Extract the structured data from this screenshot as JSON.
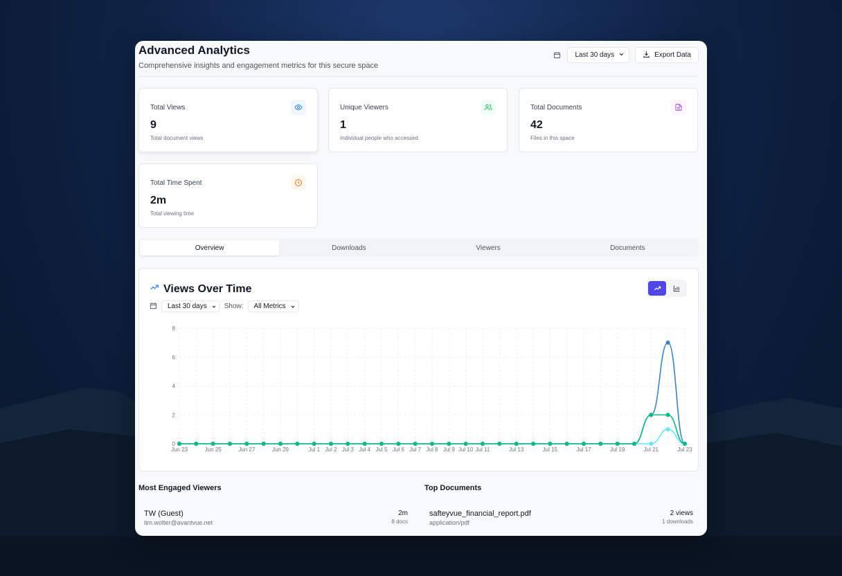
{
  "header": {
    "title": "Advanced Analytics",
    "subtitle": "Comprehensive insights and engagement metrics for this secure space",
    "date_range": "Last 30 days",
    "export_label": "Export Data"
  },
  "cards": [
    {
      "label": "Total Views",
      "value": "9",
      "desc": "Total document views",
      "icon": "eye-icon",
      "color": "#3b82f6",
      "bg": "#eff6ff"
    },
    {
      "label": "Unique Viewers",
      "value": "1",
      "desc": "Individual people who accessed",
      "icon": "users-icon",
      "color": "#22c55e",
      "bg": "#f0fdf4"
    },
    {
      "label": "Total Documents",
      "value": "42",
      "desc": "Files in this space",
      "icon": "file-icon",
      "color": "#a855f7",
      "bg": "#faf5ff"
    },
    {
      "label": "Total Time Spent",
      "value": "2m",
      "desc": "Total viewing time",
      "icon": "clock-icon",
      "color": "#f97316",
      "bg": "#fff7ed"
    }
  ],
  "tabs": [
    "Overview",
    "Downloads",
    "Viewers",
    "Documents"
  ],
  "chart_panel": {
    "title": "Views Over Time",
    "range": "Last 30 days",
    "show_label": "Show:",
    "metric": "All Metrics"
  },
  "chart_data": {
    "type": "line",
    "x": [
      "Jun 23",
      "Jun 24",
      "Jun 25",
      "Jun 26",
      "Jun 27",
      "Jun 28",
      "Jun 29",
      "Jun 30",
      "Jul 1",
      "Jul 2",
      "Jul 3",
      "Jul 4",
      "Jul 5",
      "Jul 6",
      "Jul 7",
      "Jul 8",
      "Jul 9",
      "Jul 10",
      "Jul 11",
      "Jul 12",
      "Jul 13",
      "Jul 14",
      "Jul 15",
      "Jul 16",
      "Jul 17",
      "Jul 18",
      "Jul 19",
      "Jul 20",
      "Jul 21",
      "Jul 22",
      "Jul 23"
    ],
    "xticks": [
      "Jun 23",
      "Jun 25",
      "Jun 27",
      "Jun 29",
      "Jul 1",
      "Jul 2",
      "Jul 3",
      "Jul 4",
      "Jul 5",
      "Jul 6",
      "Jul 7",
      "Jul 8",
      "Jul 9",
      "Jul 10",
      "Jul 11",
      "Jul 13",
      "Jul 15",
      "Jul 17",
      "Jul 19",
      "Jul 21",
      "Jul 23"
    ],
    "yticks": [
      0,
      2,
      4,
      6,
      8
    ],
    "ylim": [
      0,
      8
    ],
    "grid": true,
    "series": [
      {
        "color": "#3b82c4",
        "values": [
          0,
          0,
          0,
          0,
          0,
          0,
          0,
          0,
          0,
          0,
          0,
          0,
          0,
          0,
          0,
          0,
          0,
          0,
          0,
          0,
          0,
          0,
          0,
          0,
          0,
          0,
          0,
          0,
          2,
          7,
          0
        ]
      },
      {
        "color": "#67e8f9",
        "values": [
          0,
          0,
          0,
          0,
          0,
          0,
          0,
          0,
          0,
          0,
          0,
          0,
          0,
          0,
          0,
          0,
          0,
          0,
          0,
          0,
          0,
          0,
          0,
          0,
          0,
          0,
          0,
          0,
          0,
          1,
          0
        ]
      },
      {
        "color": "#10b981",
        "values": [
          0,
          0,
          0,
          0,
          0,
          0,
          0,
          0,
          0,
          0,
          0,
          0,
          0,
          0,
          0,
          0,
          0,
          0,
          0,
          0,
          0,
          0,
          0,
          0,
          0,
          0,
          0,
          0,
          2,
          2,
          0
        ]
      }
    ]
  },
  "viewers": {
    "title": "Most Engaged Viewers",
    "items": [
      {
        "name": "TW (Guest)",
        "email": "tim.wolter@avantvue.net",
        "time": "2m",
        "docs": "8 docs"
      }
    ]
  },
  "documents": {
    "title": "Top Documents",
    "items": [
      {
        "name": "safteyvue_financial_report.pdf",
        "type": "application/pdf",
        "views": "2 views",
        "downloads": "1 downloads"
      }
    ]
  }
}
